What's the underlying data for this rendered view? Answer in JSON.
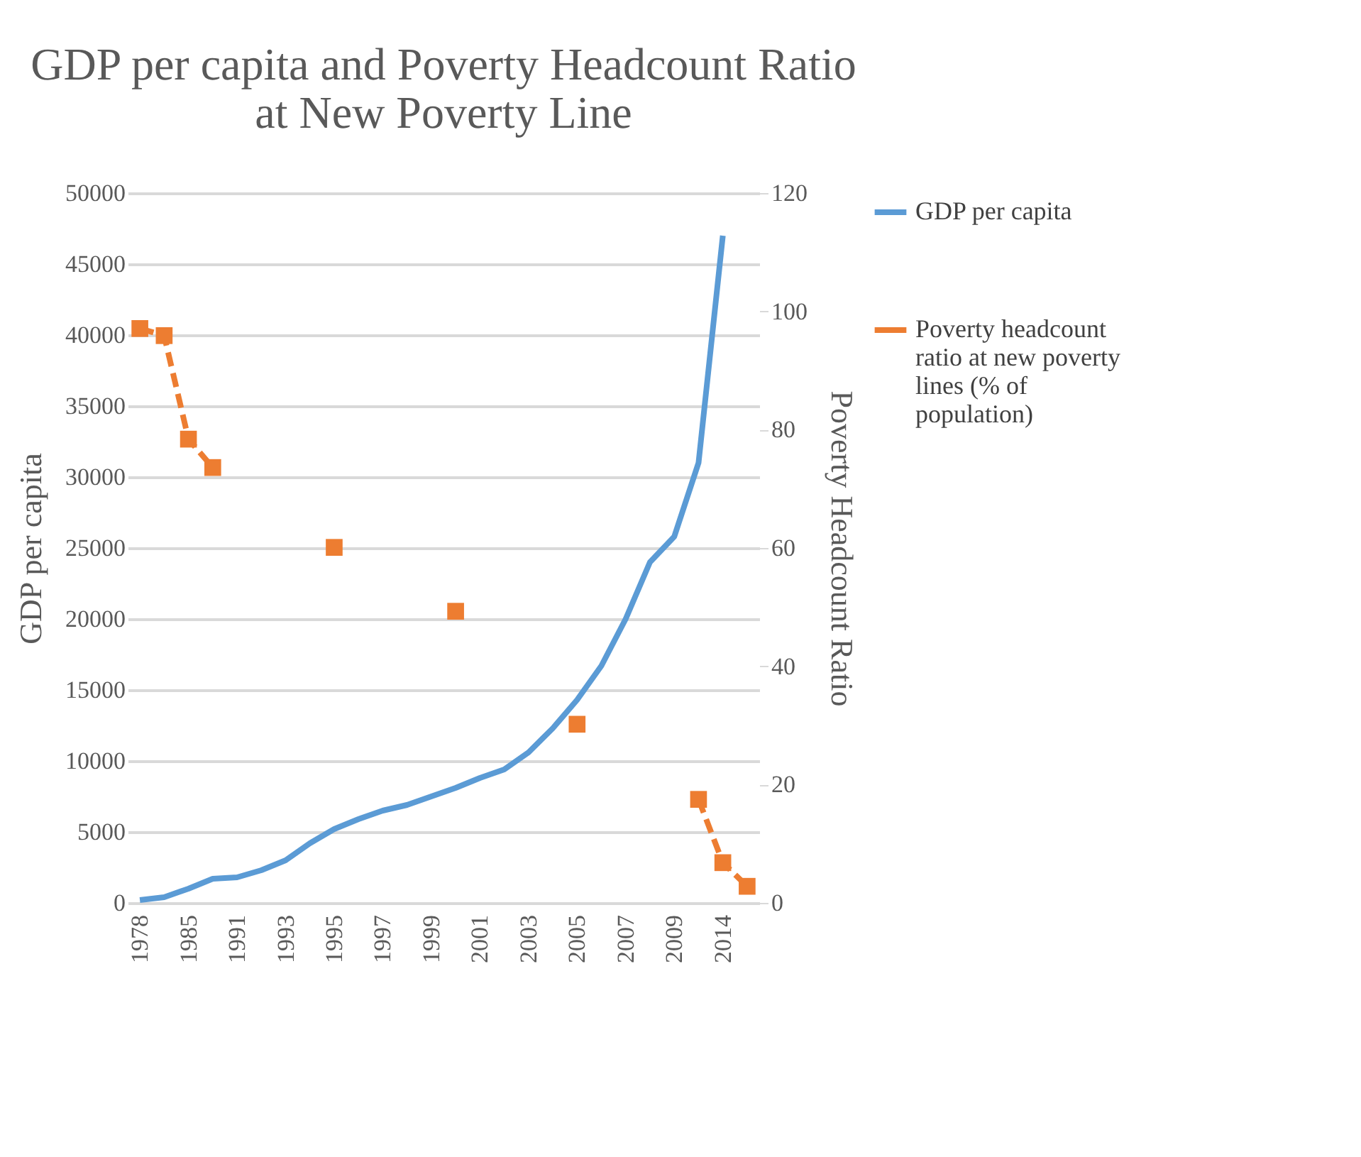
{
  "chart_data": {
    "type": "line",
    "title": "GDP per capita and Poverty Headcount Ratio at New Poverty Line",
    "ylabel": "GDP per capita",
    "y2label": "Poverty Headcount Ratio",
    "categories": [
      "1978",
      null,
      "1985",
      null,
      "1991",
      null,
      "1993",
      null,
      "1995",
      null,
      "1997",
      null,
      "1999",
      null,
      "2001",
      null,
      "2003",
      null,
      "2005",
      null,
      "2007",
      null,
      "2009",
      null,
      "2014",
      null
    ],
    "series": [
      {
        "name": "GDP per capita",
        "color": "#5b9bd5",
        "marker": "none",
        "line_style": "solid",
        "values": [
          200,
          400,
          1000,
          1700,
          1800,
          2300,
          3000,
          4200,
          5200,
          5900,
          6500,
          6900,
          7500,
          8100,
          8800,
          9400,
          10600,
          12300,
          14300,
          16700,
          20000,
          24000,
          25800,
          31000,
          47000,
          null
        ]
      },
      {
        "name": "Poverty headcount ratio at new poverty lines (% of population)",
        "color": "#ed7d31",
        "axis": "y2",
        "marker": "square",
        "line_style": "dashed",
        "values": [
          97.1,
          95.9,
          78.4,
          73.6,
          null,
          null,
          null,
          null,
          60.1,
          null,
          null,
          null,
          null,
          49.3,
          null,
          null,
          null,
          null,
          30.2,
          null,
          null,
          null,
          null,
          17.5,
          6.8,
          2.8
        ]
      }
    ],
    "ylim": [
      0,
      50000
    ],
    "yticks": [
      0,
      5000,
      10000,
      15000,
      20000,
      25000,
      30000,
      35000,
      40000,
      45000,
      50000
    ],
    "y2lim": [
      0,
      120
    ],
    "y2ticks": [
      0,
      20,
      40,
      60,
      80,
      100,
      120
    ],
    "grid": "y",
    "legend": "right"
  }
}
